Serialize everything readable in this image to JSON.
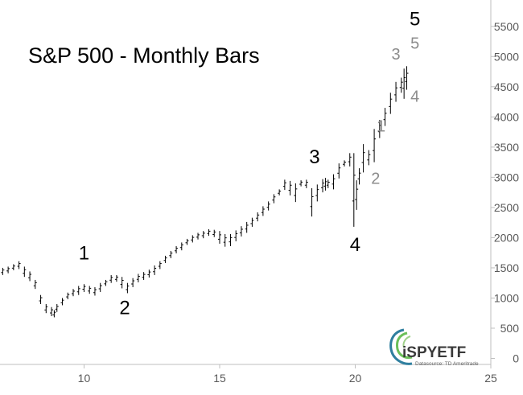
{
  "chart_data": {
    "type": "ohlc",
    "title": "S&P 500 - Monthly Bars",
    "xlabel": "",
    "ylabel": "",
    "xlim": [
      6.9,
      25
    ],
    "ylim": [
      -100,
      5750
    ],
    "x_ticks": [
      10,
      15,
      20,
      25
    ],
    "y_ticks": [
      0,
      500,
      1000,
      1500,
      2000,
      2500,
      3000,
      3500,
      4000,
      4500,
      5000,
      5500
    ],
    "y_axis_position": "right",
    "grid": false,
    "series": [
      {
        "x": [
          7.0,
          7.2,
          7.4,
          7.6,
          7.8,
          8.0,
          8.2,
          8.4,
          8.6,
          8.8,
          8.9,
          9.0,
          9.2,
          9.4,
          9.6,
          9.8,
          10.0,
          10.2,
          10.4,
          10.6,
          10.8,
          11.0,
          11.2,
          11.4,
          11.6,
          11.8,
          12.0,
          12.2,
          12.4,
          12.6,
          12.8,
          13.0,
          13.2,
          13.4,
          13.6,
          13.8,
          14.0,
          14.2,
          14.4,
          14.6,
          14.8,
          15.0,
          15.2,
          15.4,
          15.6,
          15.8,
          16.0,
          16.2,
          16.4,
          16.6,
          16.8,
          17.0,
          17.2,
          17.4,
          17.6,
          17.8,
          18.0,
          18.2,
          18.4,
          18.6,
          18.8,
          18.9,
          19.0,
          19.2,
          19.4,
          19.6,
          19.8,
          19.95,
          20.05,
          20.15,
          20.3,
          20.5,
          20.7,
          20.9,
          21.1,
          21.3,
          21.5,
          21.7,
          21.8,
          21.9
        ],
        "low": [
          1380,
          1410,
          1460,
          1480,
          1350,
          1280,
          1150,
          900,
          750,
          700,
          680,
          770,
          880,
          980,
          1030,
          1050,
          1100,
          1070,
          1040,
          1100,
          1200,
          1250,
          1270,
          1160,
          1080,
          1180,
          1260,
          1300,
          1340,
          1380,
          1480,
          1580,
          1660,
          1740,
          1790,
          1880,
          1920,
          1970,
          1990,
          2030,
          2010,
          1900,
          1850,
          1860,
          1940,
          2020,
          2080,
          2180,
          2270,
          2360,
          2450,
          2570,
          2700,
          2790,
          2700,
          2590,
          2850,
          2820,
          2350,
          2600,
          2750,
          2780,
          2820,
          2800,
          2980,
          3180,
          3180,
          2180,
          2460,
          2880,
          3080,
          3200,
          3250,
          3650,
          3850,
          4050,
          4250,
          4400,
          4300,
          4450
        ],
        "high": [
          1500,
          1520,
          1560,
          1610,
          1520,
          1440,
          1300,
          1050,
          900,
          850,
          800,
          900,
          1000,
          1090,
          1150,
          1200,
          1230,
          1200,
          1180,
          1250,
          1300,
          1380,
          1380,
          1350,
          1250,
          1330,
          1400,
          1430,
          1470,
          1540,
          1610,
          1700,
          1780,
          1860,
          1920,
          1980,
          2040,
          2080,
          2110,
          2140,
          2130,
          2110,
          2060,
          2060,
          2120,
          2190,
          2260,
          2330,
          2420,
          2520,
          2600,
          2720,
          2800,
          2960,
          2940,
          2900,
          2950,
          2960,
          2820,
          2880,
          2970,
          2990,
          2960,
          3050,
          3230,
          3280,
          3400,
          3400,
          2950,
          3150,
          3550,
          3450,
          3800,
          3950,
          4150,
          4400,
          4580,
          4650,
          4800,
          4840
        ]
      }
    ],
    "wave_labels": [
      {
        "text": "1",
        "x": 10.0,
        "y": 1640,
        "degree": "major"
      },
      {
        "text": "2",
        "x": 11.5,
        "y": 730,
        "degree": "major"
      },
      {
        "text": "3",
        "x": 18.5,
        "y": 3230,
        "degree": "major"
      },
      {
        "text": "4",
        "x": 20.0,
        "y": 1780,
        "degree": "major"
      },
      {
        "text": "5",
        "x": 22.2,
        "y": 5520,
        "degree": "major"
      },
      {
        "text": "1",
        "x": 20.95,
        "y": 3760,
        "degree": "minor"
      },
      {
        "text": "2",
        "x": 20.75,
        "y": 2890,
        "degree": "minor"
      },
      {
        "text": "3",
        "x": 21.5,
        "y": 4950,
        "degree": "minor"
      },
      {
        "text": "4",
        "x": 22.2,
        "y": 4250,
        "degree": "minor"
      },
      {
        "text": "5",
        "x": 22.2,
        "y": 5130,
        "degree": "minor"
      }
    ],
    "colors": {
      "bars": "#000000",
      "axis": "#bfbfbf",
      "tick_text": "#595959",
      "minor_wave": "#8c8c8c"
    }
  },
  "logo": {
    "brand": "iSPYETF",
    "datasource": "Datasource: TD Ameritrade",
    "colors": {
      "swirl": "#6bbf59",
      "swirl_dark": "#2f7f9f"
    }
  }
}
